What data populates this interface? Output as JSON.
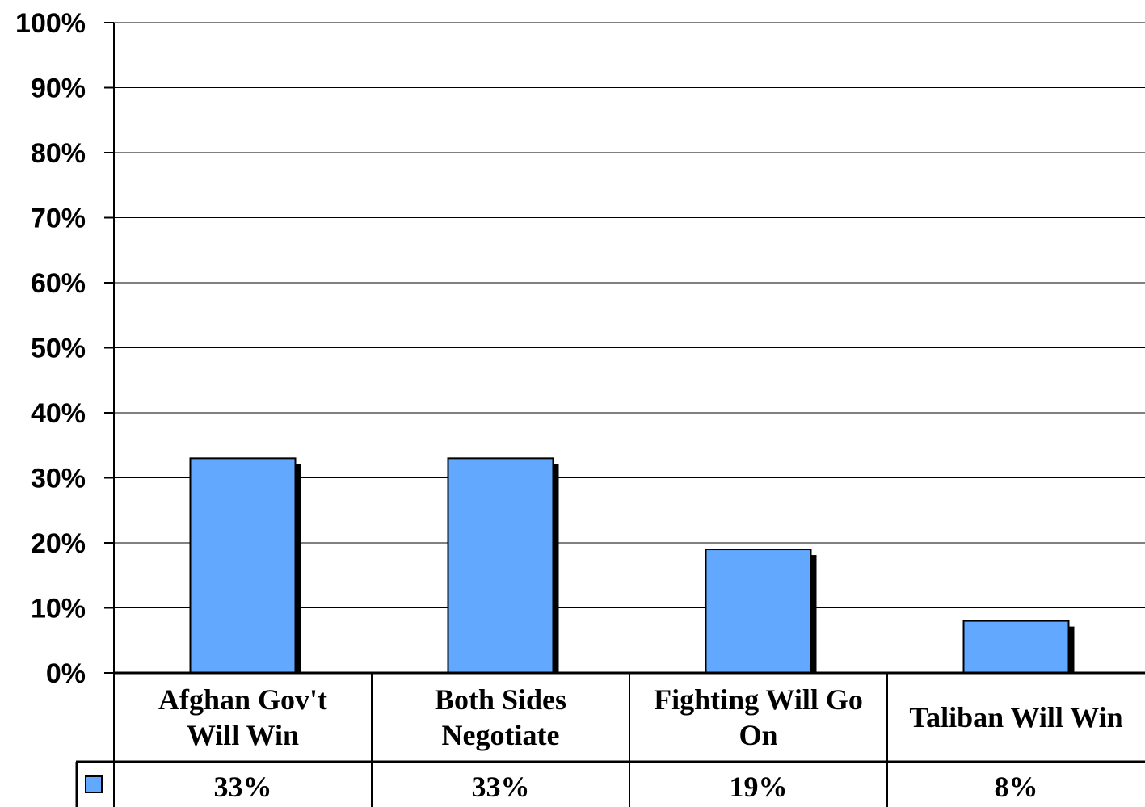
{
  "chart_data": {
    "type": "bar",
    "categories": [
      [
        "Afghan Gov't",
        "Will Win"
      ],
      [
        "Both Sides",
        "Negotiate"
      ],
      [
        "Fighting Will Go",
        "On"
      ],
      [
        "Taliban Will Win"
      ]
    ],
    "values": [
      33,
      33,
      19,
      8
    ],
    "value_labels": [
      "33%",
      "33%",
      "19%",
      "8%"
    ],
    "y_ticks": [
      "0%",
      "10%",
      "20%",
      "30%",
      "40%",
      "50%",
      "60%",
      "70%",
      "80%",
      "90%",
      "100%"
    ],
    "ylim": [
      0,
      100
    ],
    "grid": true,
    "data_table": true,
    "bar_color": "#62a8ff",
    "shadow_color": "#000000"
  }
}
